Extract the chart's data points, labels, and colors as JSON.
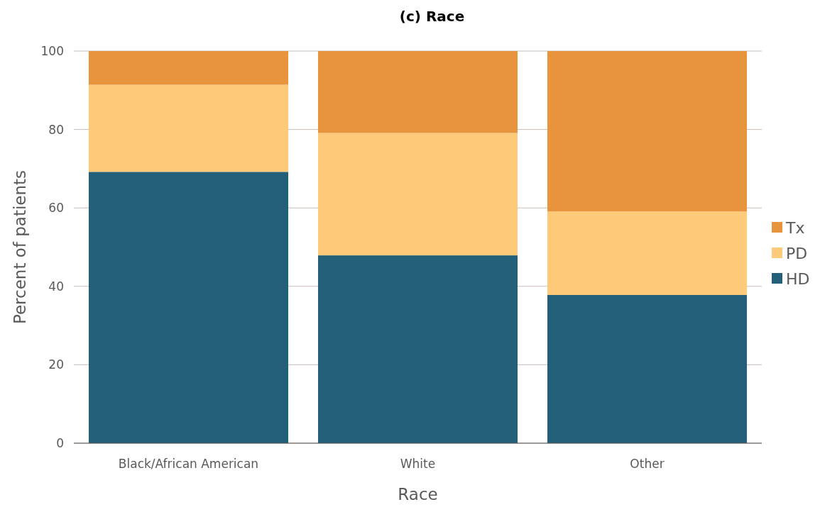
{
  "chart_data": {
    "type": "bar",
    "title": "(c) Race",
    "xlabel": "Race",
    "ylabel": "Percent of patients",
    "categories": [
      "Black/African American",
      "White",
      "Other"
    ],
    "stacked": true,
    "series": [
      {
        "name": "HD",
        "color": "#235f78",
        "values": [
          69.2,
          47.9,
          37.8
        ]
      },
      {
        "name": "PD",
        "color": "#fdca7a",
        "values": [
          22.2,
          31.2,
          21.3
        ]
      },
      {
        "name": "Tx",
        "color": "#e8943c",
        "values": [
          8.6,
          20.9,
          40.9
        ]
      }
    ],
    "ylim": [
      0,
      100
    ],
    "yticks": [
      0,
      20,
      40,
      60,
      80,
      100
    ],
    "grid": "y",
    "legend": "right"
  }
}
